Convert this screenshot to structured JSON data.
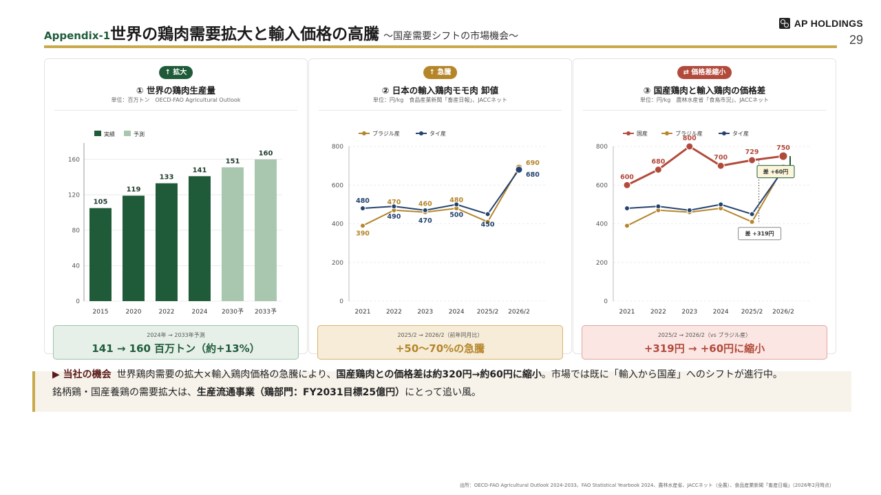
{
  "header": {
    "prefix": "Appendix-1",
    "title": "世界の鶏肉需要拡大と輸入価格の高騰",
    "subtitle": "〜国産需要シフトの市場機会〜",
    "logo_text": "AP HOLDINGS",
    "page_number": "29"
  },
  "colors": {
    "green": "#1f5b39",
    "light_green": "#a8c7ae",
    "gold": "#b5852a",
    "navy": "#23426e",
    "red": "#b24a3c",
    "rule": "#c9a94a"
  },
  "panels": [
    {
      "badge": "↑ 拡大",
      "title": "① 世界の鶏肉生産量",
      "unit": "単位：百万トン　OECD-FAO Agricultural Outlook",
      "summary_label": "2024年 → 2033年予測",
      "summary_value": "141 → 160 百万トン（約+13%）"
    },
    {
      "badge": "↑ 急騰",
      "title": "② 日本の輸入鶏肉モモ肉 卸値",
      "unit": "単位：円/kg　食品産業新聞「畜産日報」、JACCネット",
      "summary_label": "2025/2 → 2026/2（前年同月比）",
      "summary_value": "+50〜70%の急騰"
    },
    {
      "badge": "⇄ 価格差縮小",
      "title": "③ 国産鶏肉と輸入鶏肉の価格差",
      "unit": "単位：円/kg　農林水産省「食鳥市況」、JACCネット",
      "summary_label": "2025/2 → 2026/2（vs ブラジル産）",
      "summary_value": "+319円 → +60円に縮小"
    }
  ],
  "chart_data": [
    {
      "type": "bar",
      "categories": [
        "2015",
        "2020",
        "2022",
        "2024",
        "2030予",
        "2033予"
      ],
      "values": [
        105,
        119,
        133,
        141,
        151,
        160
      ],
      "forecast": [
        false,
        false,
        false,
        false,
        true,
        true
      ],
      "legend": [
        "実績",
        "予測"
      ],
      "ylim": [
        0,
        180
      ],
      "yticks": [
        0,
        40,
        80,
        120,
        160
      ]
    },
    {
      "type": "line",
      "x": [
        "2021",
        "2022",
        "2023",
        "2024",
        "2025/2",
        "2026/2"
      ],
      "series": [
        {
          "name": "ブラジル産",
          "values": [
            390,
            470,
            460,
            480,
            410,
            690
          ],
          "color": "#b5852a",
          "labels": [
            "390",
            "470",
            "460",
            "480",
            "",
            "690"
          ]
        },
        {
          "name": "タイ産",
          "values": [
            480,
            490,
            470,
            500,
            450,
            680
          ],
          "color": "#23426e",
          "labels": [
            "480",
            "490",
            "470",
            "500",
            "450",
            "680"
          ]
        }
      ],
      "ylim": [
        0,
        800
      ],
      "yticks": [
        0,
        200,
        400,
        600,
        800
      ]
    },
    {
      "type": "line",
      "x": [
        "2021",
        "2022",
        "2023",
        "2024",
        "2025/2",
        "2026/2"
      ],
      "series": [
        {
          "name": "国産",
          "values": [
            600,
            680,
            800,
            700,
            729,
            750
          ],
          "color": "#b24a3c",
          "labels": [
            "600",
            "680",
            "800",
            "700",
            "729",
            "750"
          ]
        },
        {
          "name": "ブラジル産",
          "values": [
            390,
            470,
            460,
            480,
            410,
            690
          ],
          "color": "#b5852a",
          "labels": [
            "",
            "",
            "",
            "",
            "",
            ""
          ]
        },
        {
          "name": "タイ産",
          "values": [
            480,
            490,
            470,
            500,
            450,
            680
          ],
          "color": "#23426e",
          "labels": [
            "",
            "",
            "",
            "",
            "",
            ""
          ]
        }
      ],
      "annotations": [
        "差 +319円",
        "差 +60円"
      ],
      "ylim": [
        0,
        800
      ],
      "yticks": [
        0,
        200,
        400,
        600,
        800
      ]
    }
  ],
  "opportunity": {
    "head": "▶ 当社の機会",
    "text1": "世界鶏肉需要の拡大×輸入鶏肉価格の急騰により、",
    "strong1": "国産鶏肉との価格差は約320円→約60円に縮小",
    "text2": "。市場では既に「輸入から国産」へのシフトが進行中。",
    "text3": "銘柄鶏・国産養鶏の需要拡大は、",
    "strong2": "生産流通事業（鶏部門：FY2031目標25億円）",
    "text4": "にとって追い風。"
  },
  "source": "出所：OECD-FAO Agricultural Outlook 2024-2033、FAO Statistical Yearbook 2024、農林水産省、JACCネット（全農）、食品産業新聞「畜産日報」（2026年2月時点）"
}
